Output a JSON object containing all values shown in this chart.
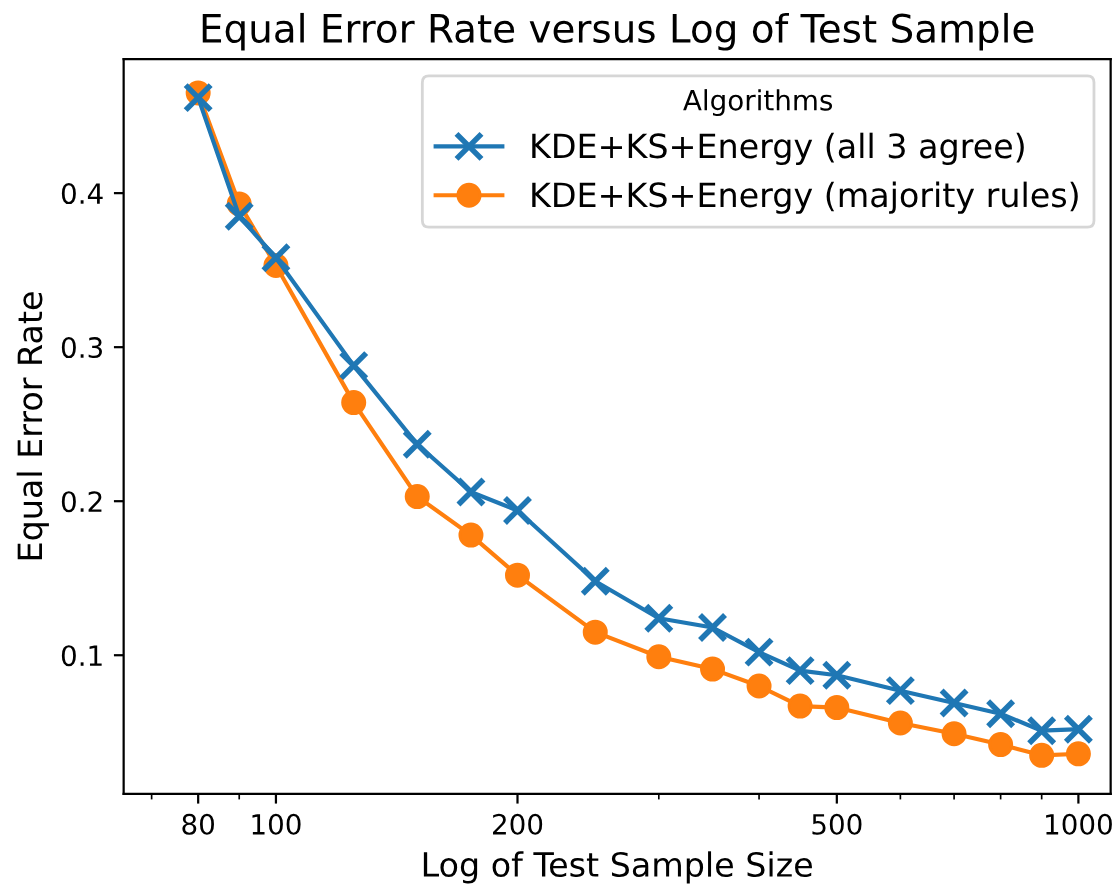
{
  "chart_data": {
    "type": "line",
    "title": "Equal Error Rate versus Log of Test Sample",
    "xlabel": "Log of Test Sample Size",
    "ylabel": "Equal Error Rate",
    "legend_title": "Algorithms",
    "x": [
      80,
      90,
      100,
      125,
      150,
      175,
      200,
      250,
      300,
      350,
      400,
      450,
      500,
      600,
      700,
      800,
      900,
      1000
    ],
    "series": [
      {
        "name": "KDE+KS+Energy (all 3 agree)",
        "color": "#1f77b4",
        "marker": "cross",
        "values": [
          0.462,
          0.385,
          0.358,
          0.288,
          0.237,
          0.206,
          0.194,
          0.148,
          0.124,
          0.118,
          0.102,
          0.09,
          0.087,
          0.077,
          0.069,
          0.062,
          0.051,
          0.052
        ]
      },
      {
        "name": "KDE+KS+Energy (majority rules)",
        "color": "#ff7f0e",
        "marker": "circle",
        "values": [
          0.465,
          0.393,
          0.353,
          0.264,
          0.203,
          0.178,
          0.152,
          0.115,
          0.099,
          0.091,
          0.08,
          0.067,
          0.066,
          0.056,
          0.049,
          0.042,
          0.035,
          0.036
        ]
      }
    ],
    "log": "x",
    "xlim": [
      64.6,
      1097
    ],
    "ylim": [
      0.01,
      0.487
    ],
    "xticks": [
      {
        "value": 70,
        "label": null
      },
      80,
      {
        "value": 90,
        "label": null
      },
      100,
      200,
      {
        "value": 300,
        "label": null
      },
      {
        "value": 400,
        "label": null
      },
      500,
      {
        "value": 600,
        "label": null
      },
      {
        "value": 700,
        "label": null
      },
      {
        "value": 800,
        "label": null
      },
      {
        "value": 900,
        "label": null
      },
      1000
    ],
    "yticks": [
      0.1,
      0.2,
      0.3,
      0.4
    ],
    "legend": "top right",
    "grid": false
  }
}
